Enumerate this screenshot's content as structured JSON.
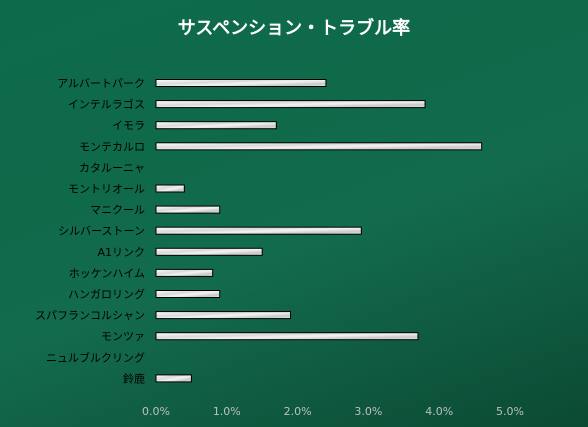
{
  "chart_data": {
    "type": "bar",
    "orientation": "horizontal",
    "title": "サスペンション・トラブル率",
    "xlabel": "",
    "ylabel": "",
    "categories": [
      "アルバートパーク",
      "インテルラゴス",
      "イモラ",
      "モンテカルロ",
      "カタルーニャ",
      "モントリオール",
      "マニクール",
      "シルバーストーン",
      "A1リンク",
      "ホッケンハイム",
      "ハンガロリング",
      "スパフランコルシャン",
      "モンツァ",
      "ニュルブルクリング",
      "鈴鹿"
    ],
    "values": [
      2.4,
      3.8,
      1.7,
      4.6,
      0,
      0.4,
      0.9,
      2.9,
      1.5,
      0.8,
      0.9,
      1.9,
      3.7,
      0,
      0.5
    ],
    "xlim": [
      0,
      5
    ],
    "x_ticks": [
      "0.0%",
      "1.0%",
      "2.0%",
      "3.0%",
      "4.0%",
      "5.0%"
    ],
    "grid": false,
    "legend": "none",
    "colors": {
      "background_top": "#0d6b4b",
      "background_bottom": "#0b4a33",
      "bar_fill": "#e6e6e6",
      "bar_edge": "#000000",
      "title": "#ffffff",
      "tick_label": "#bfbfbf",
      "category_label": "#000000"
    }
  }
}
